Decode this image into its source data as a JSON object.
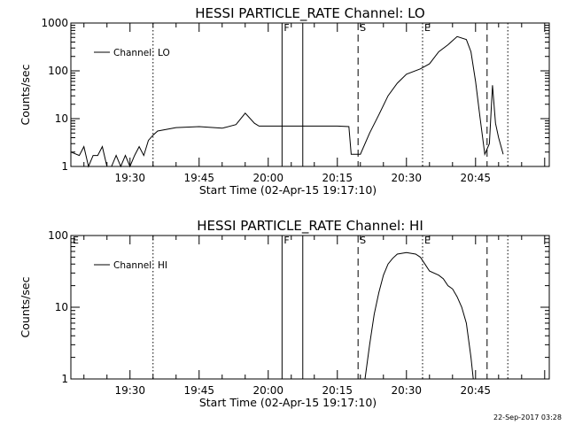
{
  "chart_data": [
    {
      "type": "line",
      "title": "HESSI PARTICLE_RATE Channel: LO",
      "xlabel": "Start Time (02-Apr-15 19:17:10)",
      "ylabel": "Counts/sec",
      "x_unit": "minutes",
      "xlim": [
        "19:17:10",
        "21:01:00"
      ],
      "xticks": [
        "19:30",
        "19:45",
        "20:00",
        "20:15",
        "20:30",
        "20:45"
      ],
      "ylim": [
        1,
        1000
      ],
      "yscale": "log",
      "yticks": [
        "1",
        "10",
        "100",
        "1000"
      ],
      "legend": "top-left",
      "series": [
        {
          "name": "Channel: LO",
          "points": [
            [
              "19:17:10",
              2.0
            ],
            [
              "19:19:00",
              1.7
            ],
            [
              "19:20:00",
              2.6
            ],
            [
              "19:21:00",
              1.0
            ],
            [
              "19:22:00",
              1.7
            ],
            [
              "19:23:00",
              1.7
            ],
            [
              "19:24:00",
              2.6
            ],
            [
              "19:25:00",
              1.0
            ],
            [
              "19:26:00",
              1.0
            ],
            [
              "19:27:00",
              1.7
            ],
            [
              "19:28:00",
              1.0
            ],
            [
              "19:29:00",
              1.7
            ],
            [
              "19:30:00",
              1.0
            ],
            [
              "19:31:00",
              1.7
            ],
            [
              "19:32:00",
              2.6
            ],
            [
              "19:33:00",
              1.7
            ],
            [
              "19:34:00",
              3.5
            ],
            [
              "19:35:00",
              4.5
            ],
            [
              "19:36:00",
              5.5
            ],
            [
              "19:40:00",
              6.5
            ],
            [
              "19:45:00",
              6.8
            ],
            [
              "19:50:00",
              6.3
            ],
            [
              "19:53:00",
              7.5
            ],
            [
              "19:55:00",
              13.0
            ],
            [
              "19:57:00",
              8.0
            ],
            [
              "19:58:00",
              7.0
            ],
            [
              "20:05:00",
              7.0
            ],
            [
              "20:10:00",
              7.0
            ],
            [
              "20:15:00",
              7.0
            ],
            [
              "20:17:30",
              6.8
            ],
            [
              "20:18:00",
              1.8
            ],
            [
              "20:20:00",
              1.8
            ],
            [
              "20:22:00",
              5.0
            ],
            [
              "20:24:00",
              12.0
            ],
            [
              "20:26:00",
              30.0
            ],
            [
              "20:28:00",
              55.0
            ],
            [
              "20:30:00",
              85.0
            ],
            [
              "20:33:00",
              110.0
            ],
            [
              "20:35:00",
              140.0
            ],
            [
              "20:37:00",
              250.0
            ],
            [
              "20:39:00",
              350.0
            ],
            [
              "20:41:00",
              520.0
            ],
            [
              "20:43:00",
              450.0
            ],
            [
              "20:44:00",
              250.0
            ],
            [
              "20:45:00",
              60.0
            ],
            [
              "20:46:00",
              10.0
            ],
            [
              "20:47:00",
              1.8
            ],
            [
              "20:48:00",
              3.0
            ],
            [
              "20:48:40",
              50.0
            ],
            [
              "20:49:20",
              8.0
            ],
            [
              "20:50:00",
              4.0
            ],
            [
              "20:51:00",
              1.8
            ]
          ]
        }
      ],
      "markers": [
        {
          "label": "F",
          "style": "solid",
          "x": "20:03:00"
        },
        {
          "label": "",
          "style": "solid",
          "x": "20:07:30"
        },
        {
          "label": "S",
          "style": "dashed",
          "x": "20:19:30"
        },
        {
          "label": "E",
          "style": "dotted",
          "x": "20:33:30"
        },
        {
          "label": "",
          "style": "dotted",
          "x": "19:35:00"
        },
        {
          "label": "",
          "style": "dashed",
          "x": "20:47:30"
        },
        {
          "label": "",
          "style": "dotted",
          "x": "20:52:00"
        }
      ]
    },
    {
      "type": "line",
      "title": "HESSI PARTICLE_RATE Channel: HI",
      "xlabel": "Start Time (02-Apr-15 19:17:10)",
      "ylabel": "Counts/sec",
      "x_unit": "minutes",
      "xlim": [
        "19:17:10",
        "21:01:00"
      ],
      "xticks": [
        "19:30",
        "19:45",
        "20:00",
        "20:15",
        "20:30",
        "20:45"
      ],
      "ylim": [
        1,
        100
      ],
      "yscale": "log",
      "yticks": [
        "1",
        "10",
        "100"
      ],
      "legend": "top-left",
      "series": [
        {
          "name": "Channel: HI",
          "points": [
            [
              "20:21:00",
              1.0
            ],
            [
              "20:22:00",
              3.0
            ],
            [
              "20:23:00",
              8.0
            ],
            [
              "20:24:00",
              16.0
            ],
            [
              "20:25:00",
              28.0
            ],
            [
              "20:26:00",
              40.0
            ],
            [
              "20:27:00",
              48.0
            ],
            [
              "20:28:00",
              55.0
            ],
            [
              "20:30:00",
              58.0
            ],
            [
              "20:32:00",
              55.0
            ],
            [
              "20:33:00",
              50.0
            ],
            [
              "20:34:00",
              40.0
            ],
            [
              "20:35:00",
              32.0
            ],
            [
              "20:37:00",
              28.0
            ],
            [
              "20:38:00",
              25.0
            ],
            [
              "20:39:00",
              20.0
            ],
            [
              "20:40:00",
              18.0
            ],
            [
              "20:41:00",
              14.0
            ],
            [
              "20:42:00",
              10.0
            ],
            [
              "20:43:00",
              6.0
            ],
            [
              "20:44:00",
              2.0
            ],
            [
              "20:44:30",
              1.0
            ]
          ]
        }
      ],
      "markers": [
        {
          "label": "E",
          "style": "none",
          "x": "19:17:10"
        },
        {
          "label": "F",
          "style": "solid",
          "x": "20:03:00"
        },
        {
          "label": "",
          "style": "solid",
          "x": "20:07:30"
        },
        {
          "label": "S",
          "style": "dashed",
          "x": "20:19:30"
        },
        {
          "label": "E",
          "style": "dotted",
          "x": "20:33:30"
        },
        {
          "label": "",
          "style": "dotted",
          "x": "19:35:00"
        },
        {
          "label": "",
          "style": "dashed",
          "x": "20:47:30"
        },
        {
          "label": "",
          "style": "dotted",
          "x": "20:52:00"
        }
      ]
    }
  ],
  "footer": {
    "timestamp": "22-Sep-2017 03:28"
  }
}
